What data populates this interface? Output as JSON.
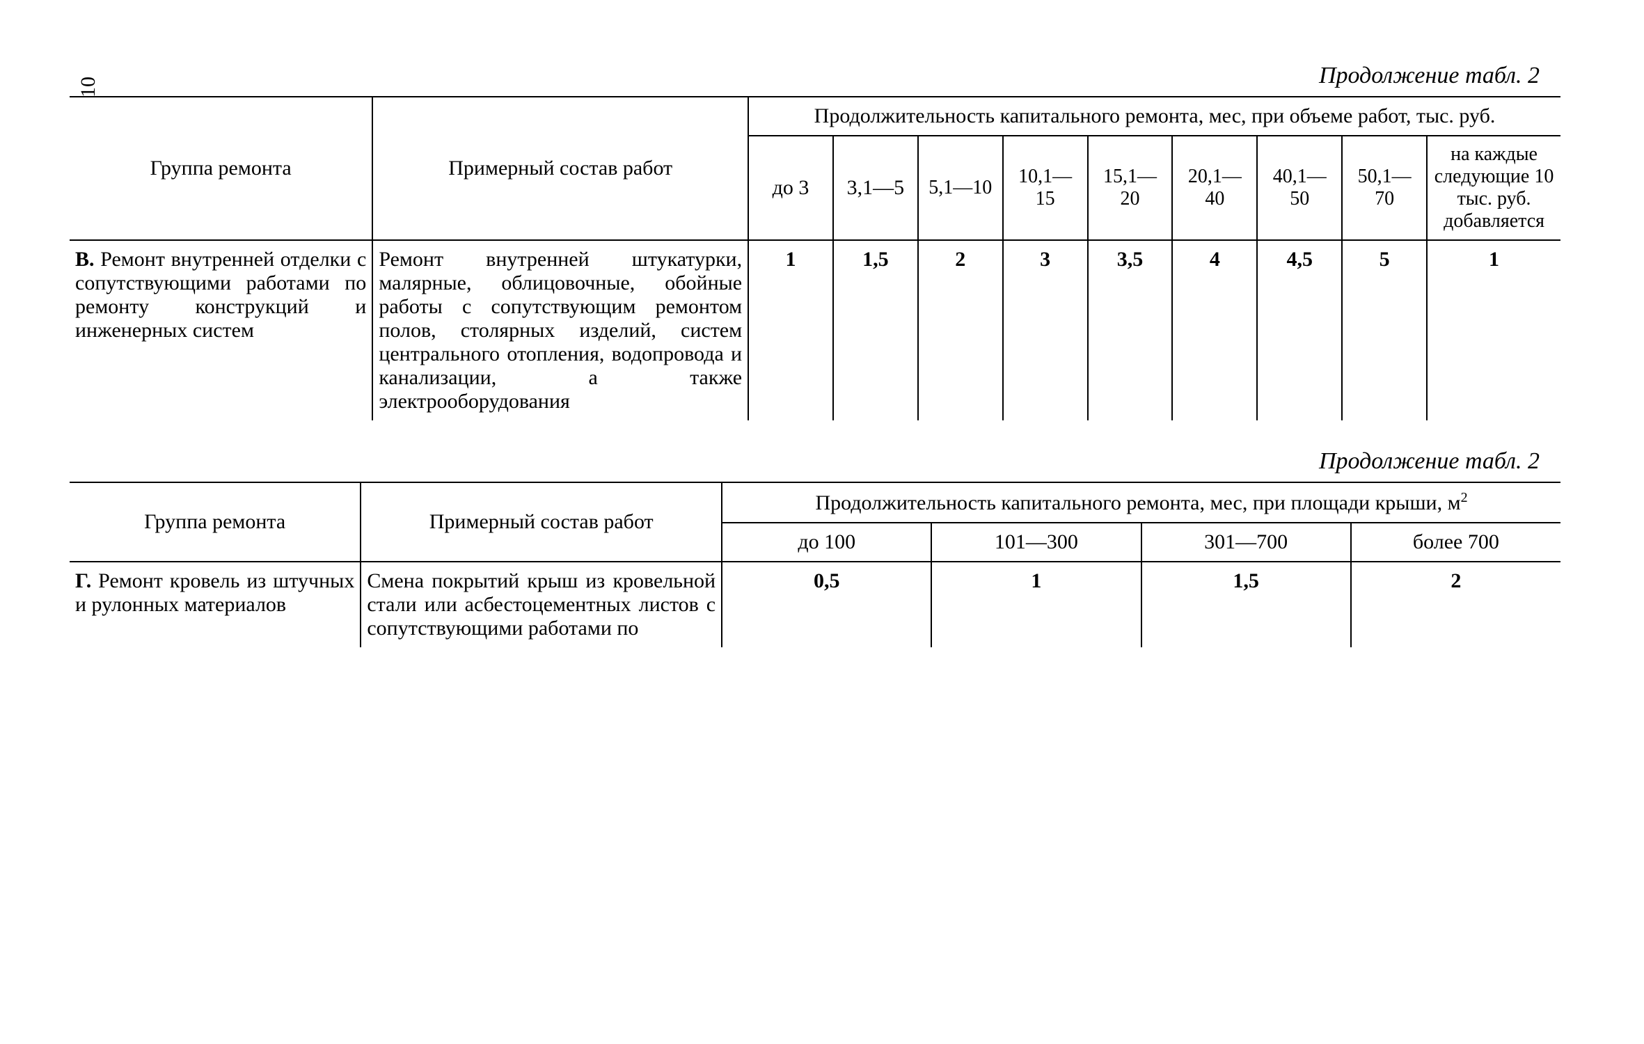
{
  "page_number": "10",
  "caption": "Продолжение табл. 2",
  "table1": {
    "hdr_group": "Группа ремонта",
    "hdr_scope": "Примерный состав работ",
    "hdr_span": "Продолжительность капитального ремонта, мес, при объеме работ, тыс. руб.",
    "cols": [
      "до 3",
      "3,1—5",
      "5,1—10",
      "10,1—15",
      "15,1—20",
      "20,1—40",
      "40,1—50",
      "50,1—70"
    ],
    "col_last": "на каждые следующие 10 тыс. руб. добавляется",
    "row": {
      "group": "В. Ремонт внутренней отделки с сопутствующими работами по ремонту конструкций и инженерных систем",
      "scope": "Ремонт внутренней штукатурки, малярные, облицовочные, обойные работы с сопутствующим ремонтом полов, столярных изделий, систем центрального отопления, водопровода и канализации, а также электрооборудования",
      "vals": [
        "1",
        "1,5",
        "2",
        "3",
        "3,5",
        "4",
        "4,5",
        "5",
        "1"
      ]
    }
  },
  "table2": {
    "hdr_group": "Группа ремонта",
    "hdr_scope": "Примерный состав работ",
    "hdr_span_a": "Продолжительность капитального ремонта, мес, при площади крыши, м",
    "hdr_span_sup": "2",
    "cols": [
      "до 100",
      "101—300",
      "301—700",
      "более 700"
    ],
    "row": {
      "group": "Г. Ремонт кровель из штучных и рулонных материалов",
      "scope": "Смена покрытий крыш из кровельной стали или асбестоцементных листов с сопутствующими работами по",
      "vals": [
        "0,5",
        "1",
        "1,5",
        "2"
      ]
    }
  }
}
